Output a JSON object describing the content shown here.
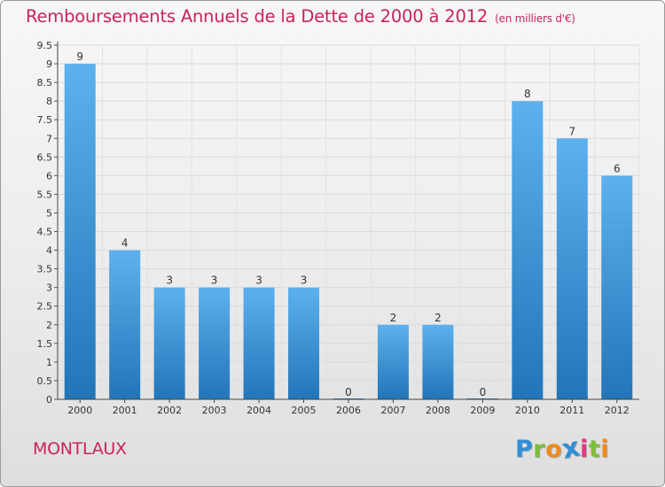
{
  "chart_data": {
    "type": "bar",
    "title": "Remboursements Annuels de la Dette de 2000 à 2012",
    "unit_label": "(en milliers d'€)",
    "categories": [
      "2000",
      "2001",
      "2002",
      "2003",
      "2004",
      "2005",
      "2006",
      "2007",
      "2008",
      "2009",
      "2010",
      "2011",
      "2012"
    ],
    "values": [
      9,
      4,
      3,
      3,
      3,
      3,
      0,
      2,
      2,
      0,
      8,
      7,
      6
    ],
    "ylim": [
      0,
      9.5
    ],
    "yticks": [
      "0",
      "0.5",
      "1",
      "1.5",
      "2",
      "2.5",
      "3",
      "3.5",
      "4",
      "4.5",
      "5",
      "5.5",
      "6",
      "6.5",
      "7",
      "7.5",
      "8",
      "8.5",
      "9",
      "9.5"
    ],
    "grid": true,
    "bar_color": "#3c96d6",
    "title_color": "#c8235e"
  },
  "place": "MONTLAUX",
  "logo": {
    "text": "Proxiti",
    "letters": [
      {
        "ch": "P",
        "color": "#2e8fd8"
      },
      {
        "ch": "r",
        "color": "#7abf3a"
      },
      {
        "ch": "o",
        "color": "#f08a1c"
      },
      {
        "ch": "x",
        "color": "#2e8fd8"
      },
      {
        "ch": "i",
        "color": "#e23a7e"
      },
      {
        "ch": "t",
        "color": "#7abf3a"
      },
      {
        "ch": "i",
        "color": "#f08a1c"
      }
    ]
  }
}
